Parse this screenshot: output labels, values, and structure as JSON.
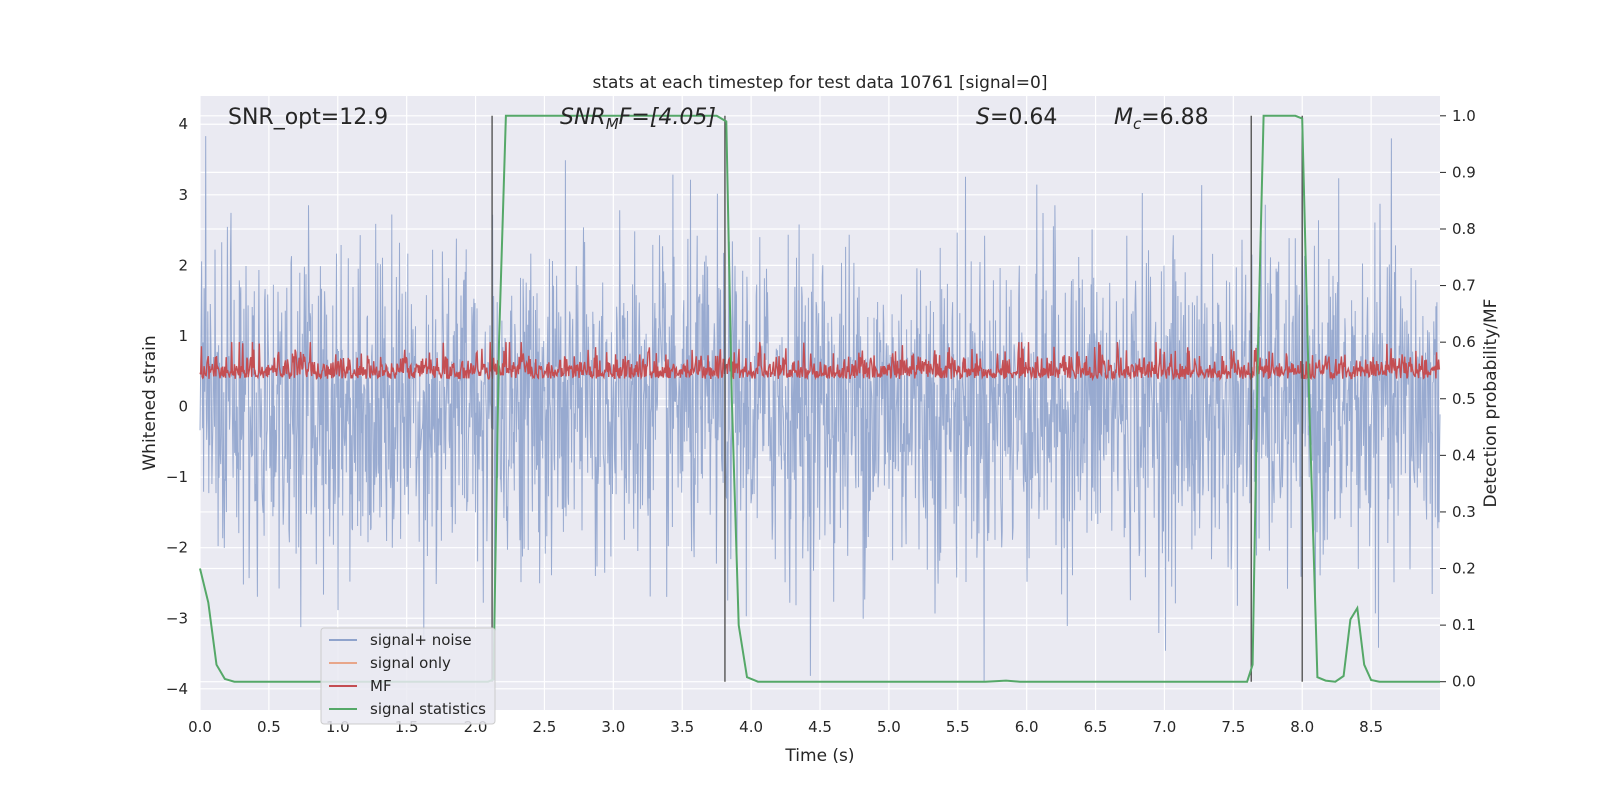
{
  "chart_data": {
    "type": "line",
    "title": "stats at each timestep for test data 10761 [signal=0]",
    "xlabel": "Time (s)",
    "ylabel": "Whitened strain",
    "y2label": "Detection probability/MF",
    "xlim": [
      0.0,
      9.0
    ],
    "ylim": [
      -4.3,
      4.4
    ],
    "y2lim": [
      -0.05,
      1.035
    ],
    "xticks": [
      0.0,
      0.5,
      1.0,
      1.5,
      2.0,
      2.5,
      3.0,
      3.5,
      4.0,
      4.5,
      5.0,
      5.5,
      6.0,
      6.5,
      7.0,
      7.5,
      8.0,
      8.5
    ],
    "xtick_labels": [
      "0.0",
      "0.5",
      "1.0",
      "1.5",
      "2.0",
      "2.5",
      "3.0",
      "3.5",
      "4.0",
      "4.5",
      "5.0",
      "5.5",
      "6.0",
      "6.5",
      "7.0",
      "7.5",
      "8.0",
      "8.5"
    ],
    "yticks": [
      -4,
      -3,
      -2,
      -1,
      0,
      1,
      2,
      3,
      4
    ],
    "ytick_labels": [
      "−4",
      "−3",
      "−2",
      "−1",
      "0",
      "1",
      "2",
      "3",
      "4"
    ],
    "y2ticks": [
      0.0,
      0.1,
      0.2,
      0.3,
      0.4,
      0.5,
      0.6,
      0.7,
      0.8,
      0.9,
      1.0
    ],
    "y2tick_labels": [
      "0.0",
      "0.1",
      "0.2",
      "0.3",
      "0.4",
      "0.5",
      "0.6",
      "0.7",
      "0.8",
      "0.9",
      "1.0"
    ],
    "annotations": [
      {
        "id": "snr-opt",
        "text": "SNR_opt=12.9"
      },
      {
        "id": "snr-mf",
        "main": "SNR",
        "sub": "M",
        "rest": "F=[4.05]"
      },
      {
        "id": "s-stat",
        "main": "S",
        "rest": "=0.64"
      },
      {
        "id": "mc",
        "main": "M",
        "sub": "c",
        "rest": "=6.88"
      }
    ],
    "vertical_lines_s": [
      2.12,
      3.81,
      7.63,
      8.0
    ],
    "series": [
      {
        "name": "signal+ noise",
        "color": "#8fa3cc",
        "description": "white noise around 0, spanning roughly -3.9 to 4.0",
        "amplitude": {
          "typical": 1.6,
          "max": 4.0,
          "min": -3.9
        }
      },
      {
        "name": "signal only",
        "color": "#e8a68a"
      },
      {
        "name": "MF",
        "color": "#c44e52",
        "description": "matched-filter output on right axis, roughly 0.5 to 0.6",
        "axis": "right",
        "range": [
          0.5,
          0.6
        ]
      },
      {
        "name": "signal statistics",
        "color": "#55a868",
        "axis": "right",
        "x": [
          0.0,
          0.06,
          0.12,
          0.18,
          0.25,
          0.4,
          1.0,
          1.5,
          2.0,
          2.09,
          2.13,
          2.17,
          2.22,
          2.3,
          3.0,
          3.5,
          3.75,
          3.82,
          3.86,
          3.91,
          3.97,
          4.05,
          4.5,
          5.0,
          5.5,
          5.7,
          5.85,
          5.95,
          6.5,
          7.0,
          7.5,
          7.6,
          7.64,
          7.68,
          7.72,
          7.8,
          7.95,
          8.0,
          8.05,
          8.11,
          8.17,
          8.24,
          8.3,
          8.35,
          8.4,
          8.45,
          8.5,
          8.56,
          8.62,
          8.8,
          9.0
        ],
        "y": [
          0.2,
          0.14,
          0.03,
          0.005,
          0.0,
          0.0,
          0.0,
          0.0,
          0.0,
          0.0,
          0.004,
          0.6,
          1.0,
          1.0,
          1.0,
          1.0,
          1.0,
          0.99,
          0.5,
          0.1,
          0.008,
          0.0,
          0.0,
          0.0,
          0.0,
          0.0,
          0.002,
          0.0,
          0.0,
          0.0,
          0.0,
          0.0,
          0.03,
          0.6,
          1.0,
          1.0,
          1.0,
          0.995,
          0.5,
          0.008,
          0.002,
          0.0,
          0.01,
          0.11,
          0.13,
          0.03,
          0.003,
          0.0,
          0.0,
          0.0,
          0.0
        ]
      }
    ],
    "legend": {
      "placement": "lower-left",
      "entries": [
        "signal+ noise",
        "signal only",
        "MF",
        "signal statistics"
      ]
    }
  }
}
